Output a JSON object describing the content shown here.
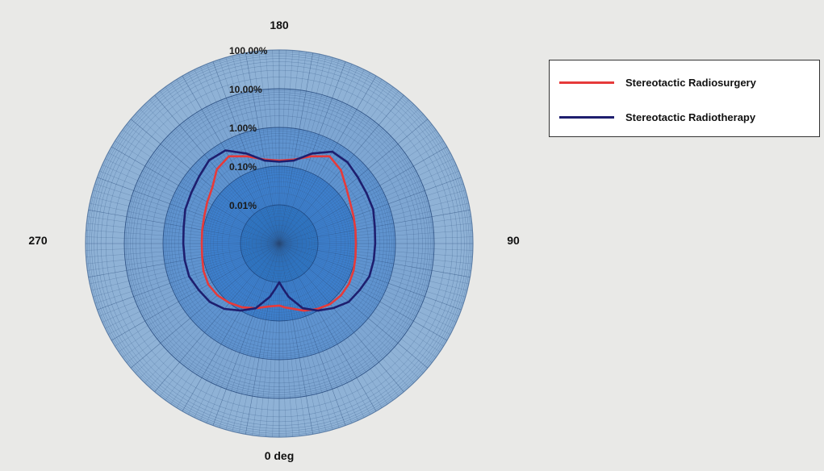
{
  "chart_data": {
    "type": "polar-line",
    "radial_scale": "log",
    "radial_ticks": [
      "0.01%",
      "0.10%",
      "1.00%",
      "10.00%",
      "100.00%"
    ],
    "radial_range": [
      "0.001%",
      "100.00%"
    ],
    "angle_labels": {
      "bottom": "0 deg",
      "right": "90",
      "top": "180",
      "left": "270"
    },
    "grid": true,
    "legend_position": "top-right",
    "series": [
      {
        "name": "Stereotactic Radiosurgery",
        "color": "#e63a3a",
        "points": [
          {
            "angle": 0,
            "value": 0.04
          },
          {
            "angle": 5,
            "value": 0.045
          },
          {
            "angle": 10,
            "value": 0.05
          },
          {
            "angle": 20,
            "value": 0.07
          },
          {
            "angle": 30,
            "value": 0.09
          },
          {
            "angle": 40,
            "value": 0.11
          },
          {
            "angle": 50,
            "value": 0.12
          },
          {
            "angle": 60,
            "value": 0.12
          },
          {
            "angle": 70,
            "value": 0.11
          },
          {
            "angle": 80,
            "value": 0.1
          },
          {
            "angle": 90,
            "value": 0.095
          },
          {
            "angle": 100,
            "value": 0.1
          },
          {
            "angle": 110,
            "value": 0.11
          },
          {
            "angle": 120,
            "value": 0.13
          },
          {
            "angle": 130,
            "value": 0.18
          },
          {
            "angle": 140,
            "value": 0.3
          },
          {
            "angle": 150,
            "value": 0.4
          },
          {
            "angle": 160,
            "value": 0.25
          },
          {
            "angle": 170,
            "value": 0.16
          },
          {
            "angle": 180,
            "value": 0.14
          },
          {
            "angle": 190,
            "value": 0.16
          },
          {
            "angle": 200,
            "value": 0.25
          },
          {
            "angle": 210,
            "value": 0.4
          },
          {
            "angle": 220,
            "value": 0.32
          },
          {
            "angle": 230,
            "value": 0.18
          },
          {
            "angle": 240,
            "value": 0.14
          },
          {
            "angle": 250,
            "value": 0.115
          },
          {
            "angle": 260,
            "value": 0.105
          },
          {
            "angle": 270,
            "value": 0.1
          },
          {
            "angle": 280,
            "value": 0.105
          },
          {
            "angle": 290,
            "value": 0.12
          },
          {
            "angle": 300,
            "value": 0.13
          },
          {
            "angle": 310,
            "value": 0.12
          },
          {
            "angle": 320,
            "value": 0.1
          },
          {
            "angle": 330,
            "value": 0.08
          },
          {
            "angle": 340,
            "value": 0.06
          },
          {
            "angle": 350,
            "value": 0.045
          },
          {
            "angle": 360,
            "value": 0.04
          }
        ]
      },
      {
        "name": "Stereotactic Radiotherapy",
        "color": "#1e1e6e",
        "points": [
          {
            "angle": 0,
            "value": 0.01
          },
          {
            "angle": 5,
            "value": 0.015
          },
          {
            "angle": 10,
            "value": 0.025
          },
          {
            "angle": 20,
            "value": 0.06
          },
          {
            "angle": 30,
            "value": 0.1
          },
          {
            "angle": 40,
            "value": 0.15
          },
          {
            "angle": 50,
            "value": 0.22
          },
          {
            "angle": 60,
            "value": 0.25
          },
          {
            "angle": 70,
            "value": 0.3
          },
          {
            "angle": 80,
            "value": 0.3
          },
          {
            "angle": 90,
            "value": 0.3
          },
          {
            "angle": 100,
            "value": 0.32
          },
          {
            "angle": 110,
            "value": 0.38
          },
          {
            "angle": 120,
            "value": 0.4
          },
          {
            "angle": 130,
            "value": 0.45
          },
          {
            "angle": 140,
            "value": 0.55
          },
          {
            "angle": 150,
            "value": 0.55
          },
          {
            "angle": 160,
            "value": 0.3
          },
          {
            "angle": 170,
            "value": 0.15
          },
          {
            "angle": 180,
            "value": 0.13
          },
          {
            "angle": 190,
            "value": 0.15
          },
          {
            "angle": 200,
            "value": 0.3
          },
          {
            "angle": 210,
            "value": 0.6
          },
          {
            "angle": 220,
            "value": 0.65
          },
          {
            "angle": 230,
            "value": 0.5
          },
          {
            "angle": 240,
            "value": 0.42
          },
          {
            "angle": 250,
            "value": 0.38
          },
          {
            "angle": 260,
            "value": 0.32
          },
          {
            "angle": 270,
            "value": 0.3
          },
          {
            "angle": 280,
            "value": 0.3
          },
          {
            "angle": 290,
            "value": 0.3
          },
          {
            "angle": 300,
            "value": 0.25
          },
          {
            "angle": 310,
            "value": 0.22
          },
          {
            "angle": 320,
            "value": 0.16
          },
          {
            "angle": 330,
            "value": 0.1
          },
          {
            "angle": 340,
            "value": 0.06
          },
          {
            "angle": 350,
            "value": 0.025
          },
          {
            "angle": 355,
            "value": 0.015
          },
          {
            "angle": 360,
            "value": 0.01
          }
        ]
      }
    ]
  },
  "legend": {
    "items": [
      {
        "label": "Stereotactic Radiosurgery",
        "color": "#e63a3a"
      },
      {
        "label": "Stereotactic Radiotherapy",
        "color": "#1e1e6e"
      }
    ]
  }
}
